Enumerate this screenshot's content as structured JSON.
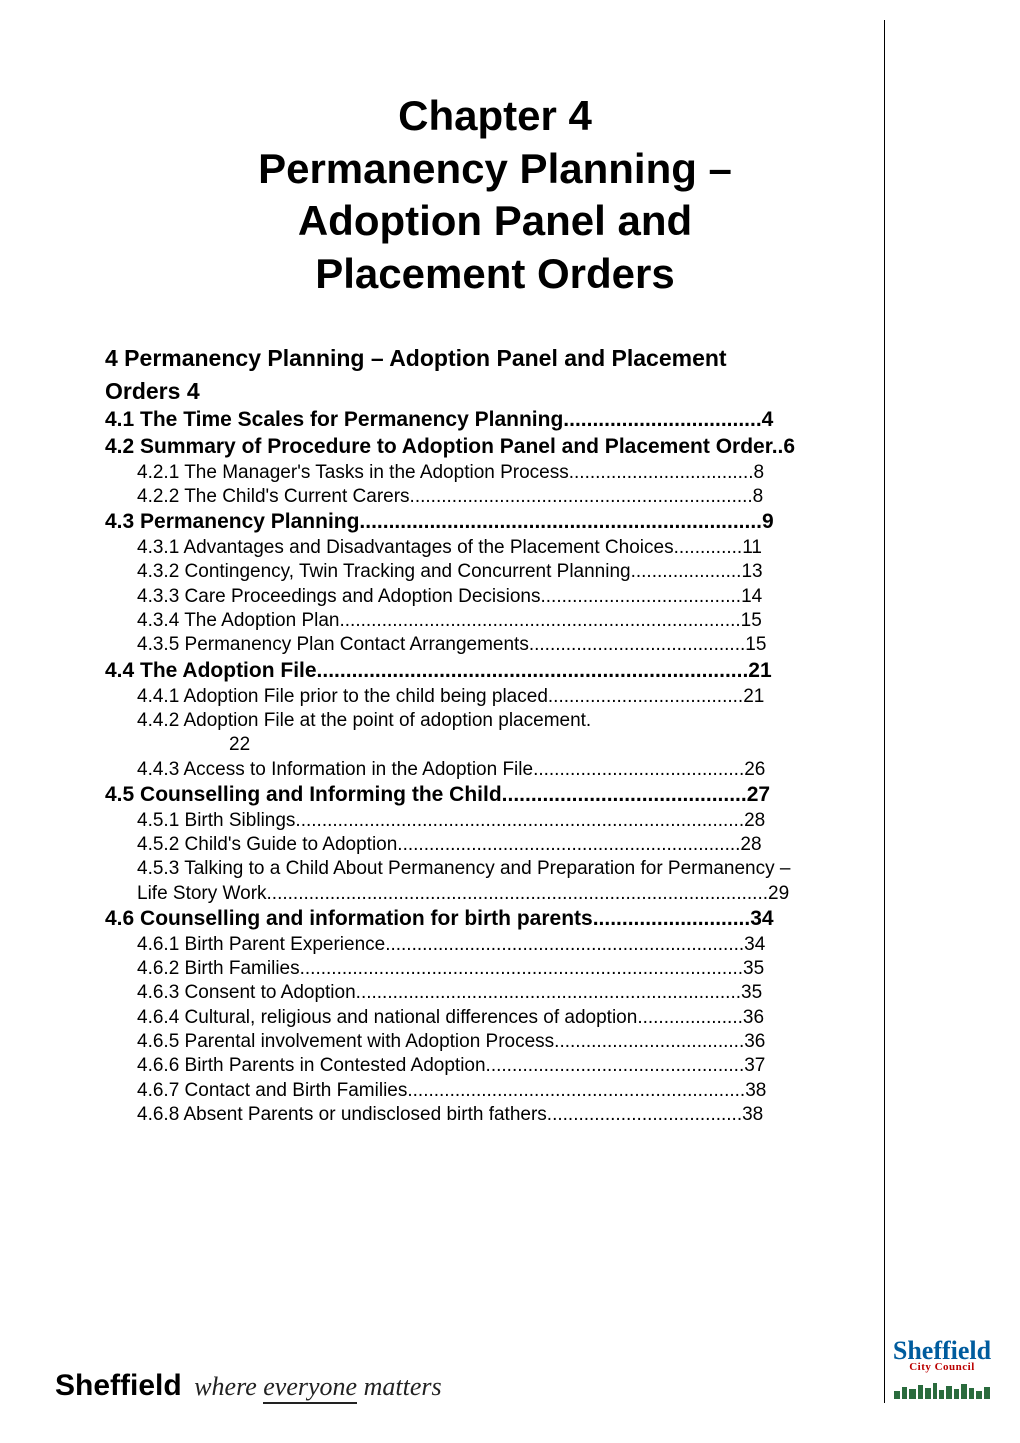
{
  "title_lines": [
    "Chapter 4",
    "Permanency Planning –",
    "Adoption Panel and",
    "Placement Orders"
  ],
  "toc": [
    {
      "level": 1,
      "num": "4",
      "title": "Permanency Planning – Adoption Panel and Placement Orders",
      "page": "4",
      "continuation": true
    },
    {
      "level": 2,
      "num": "4.1",
      "title": "The Time Scales for Permanency Planning",
      "page": "4"
    },
    {
      "level": 2,
      "num": "4.2",
      "title": "Summary of Procedure to Adoption Panel and Placement Order",
      "page": "6",
      "continuation": true
    },
    {
      "level": 3,
      "num": "4.2.1",
      "title": "The Manager's Tasks in the Adoption Process",
      "page": "8"
    },
    {
      "level": 3,
      "num": "4.2.2",
      "title": "The Child's Current Carers",
      "page": "8"
    },
    {
      "level": 2,
      "num": "4.3",
      "title": "Permanency Planning",
      "page": "9"
    },
    {
      "level": 3,
      "num": "4.3.1",
      "title": "Advantages and Disadvantages of the Placement Choices",
      "page": "11",
      "continuation": true
    },
    {
      "level": 3,
      "num": "4.3.2",
      "title": "Contingency, Twin Tracking and Concurrent Planning",
      "page": "13",
      "continuation": true
    },
    {
      "level": 3,
      "num": "4.3.3",
      "title": "Care Proceedings and Adoption Decisions",
      "page": "14"
    },
    {
      "level": 3,
      "num": "4.3.4",
      "title": "The Adoption Plan",
      "page": "15"
    },
    {
      "level": 3,
      "num": "4.3.5",
      "title": "Permanency Plan Contact Arrangements",
      "page": "15"
    },
    {
      "level": 2,
      "num": "4.4",
      "title": "The Adoption File",
      "page": "21"
    },
    {
      "level": 3,
      "num": "4.4.1",
      "title": "Adoption File prior to the child being placed",
      "page": "21"
    },
    {
      "level": 3,
      "num": "4.4.2",
      "title": "Adoption File at the point of adoption placement.",
      "page": "22",
      "continuation": true,
      "page_below": true
    },
    {
      "level": 3,
      "num": "4.4.3",
      "title": "Access to Information in the Adoption File",
      "page": "26"
    },
    {
      "level": 2,
      "num": "4.5",
      "title": "Counselling and Informing the Child",
      "page": "27"
    },
    {
      "level": 3,
      "num": "4.5.1",
      "title": "Birth Siblings",
      "page": "28"
    },
    {
      "level": 3,
      "num": "4.5.2",
      "title": "Child's Guide to Adoption",
      "page": "28"
    },
    {
      "level": 3,
      "num": "4.5.3",
      "title": "Talking to a Child About Permanency and Preparation for Permanency – Life Story Work",
      "page": "29",
      "continuation": true
    },
    {
      "level": 2,
      "num": "4.6",
      "title": "Counselling and information for birth parents",
      "page": "34",
      "continuation": true
    },
    {
      "level": 3,
      "num": "4.6.1",
      "title": "Birth Parent Experience",
      "page": "34"
    },
    {
      "level": 3,
      "num": "4.6.2",
      "title": "Birth Families",
      "page": "35"
    },
    {
      "level": 3,
      "num": "4.6.3",
      "title": "Consent to Adoption",
      "page": "35"
    },
    {
      "level": 3,
      "num": "4.6.4",
      "title": "Cultural, religious and national differences of adoption",
      "page": "36",
      "continuation": true
    },
    {
      "level": 3,
      "num": "4.6.5",
      "title": "Parental involvement with Adoption Process",
      "page": "36"
    },
    {
      "level": 3,
      "num": "4.6.6",
      "title": "Birth Parents in Contested Adoption",
      "page": "37"
    },
    {
      "level": 3,
      "num": "4.6.7",
      "title": "Contact and Birth Families",
      "page": "38"
    },
    {
      "level": 3,
      "num": "4.6.8",
      "title": "Absent Parents or undisclosed birth fathers",
      "page": "38"
    }
  ],
  "footer": {
    "brand": "Sheffield",
    "tagline_1": "where ",
    "tagline_u1": "everyone",
    "tagline_2": " matters"
  },
  "logo": {
    "line1": "Sheffield",
    "line2": "City Council"
  },
  "colors": {
    "text": "#000000",
    "logo_blue": "#005c9e",
    "logo_red": "#b00000"
  }
}
